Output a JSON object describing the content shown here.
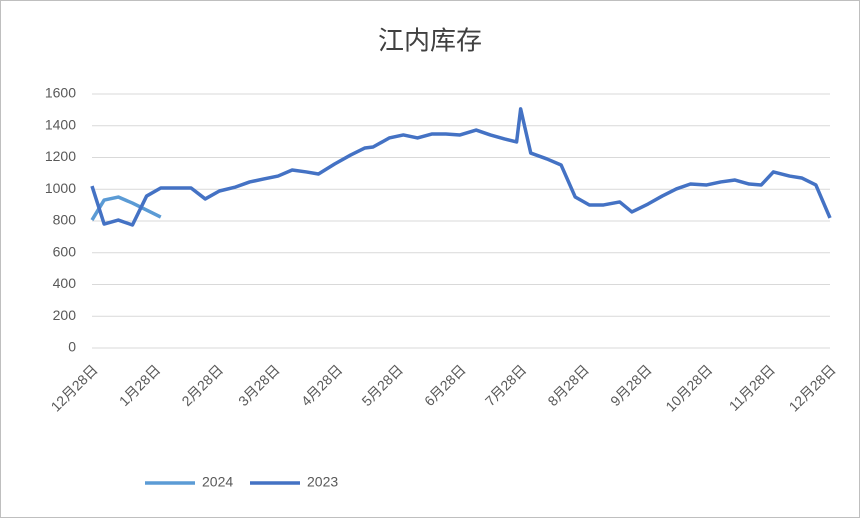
{
  "chart_data": {
    "type": "line",
    "title": "江内库存",
    "xlim": [
      0,
      365
    ],
    "xticks": [
      {
        "value": 0,
        "label": "12月28日"
      },
      {
        "value": 31,
        "label": "1月28日"
      },
      {
        "value": 62,
        "label": "2月28日"
      },
      {
        "value": 90,
        "label": "3月28日"
      },
      {
        "value": 121,
        "label": "4月28日"
      },
      {
        "value": 151,
        "label": "5月28日"
      },
      {
        "value": 182,
        "label": "6月28日"
      },
      {
        "value": 212,
        "label": "7月28日"
      },
      {
        "value": 243,
        "label": "8月28日"
      },
      {
        "value": 274,
        "label": "9月28日"
      },
      {
        "value": 304,
        "label": "10月28日"
      },
      {
        "value": 335,
        "label": "11月28日"
      },
      {
        "value": 365,
        "label": "12月28日"
      }
    ],
    "ylim": [
      0,
      1600
    ],
    "yticks": [
      0,
      200,
      400,
      600,
      800,
      1000,
      1200,
      1400,
      1600
    ],
    "grid": true,
    "series": [
      {
        "name": "2024",
        "color": "#5b9bd5",
        "x": [
          0,
          6,
          13,
          20,
          27,
          34
        ],
        "values": [
          806,
          932,
          951,
          913,
          869,
          825
        ]
      },
      {
        "name": "2023",
        "color": "#4472c4",
        "x": [
          0,
          6,
          13,
          20,
          27,
          34,
          42,
          49,
          56,
          63,
          71,
          78,
          85,
          92,
          99,
          106,
          112,
          120,
          128,
          135,
          139,
          147,
          154,
          161,
          168,
          175,
          182,
          190,
          197,
          204,
          210,
          212,
          217,
          225,
          232,
          239,
          246,
          253,
          261,
          267,
          275,
          282,
          289,
          296,
          304,
          311,
          318,
          325,
          331,
          337,
          345,
          351,
          358,
          365
        ],
        "values": [
          1020,
          781,
          806,
          775,
          957,
          1008,
          1008,
          1008,
          939,
          989,
          1014,
          1046,
          1065,
          1083,
          1121,
          1109,
          1096,
          1159,
          1216,
          1260,
          1266,
          1323,
          1342,
          1323,
          1348,
          1348,
          1342,
          1373,
          1342,
          1317,
          1298,
          1506,
          1228,
          1191,
          1153,
          951,
          901,
          901,
          920,
          857,
          907,
          957,
          1002,
          1033,
          1027,
          1046,
          1058,
          1033,
          1027,
          1109,
          1083,
          1071,
          1027,
          819
        ]
      }
    ]
  }
}
